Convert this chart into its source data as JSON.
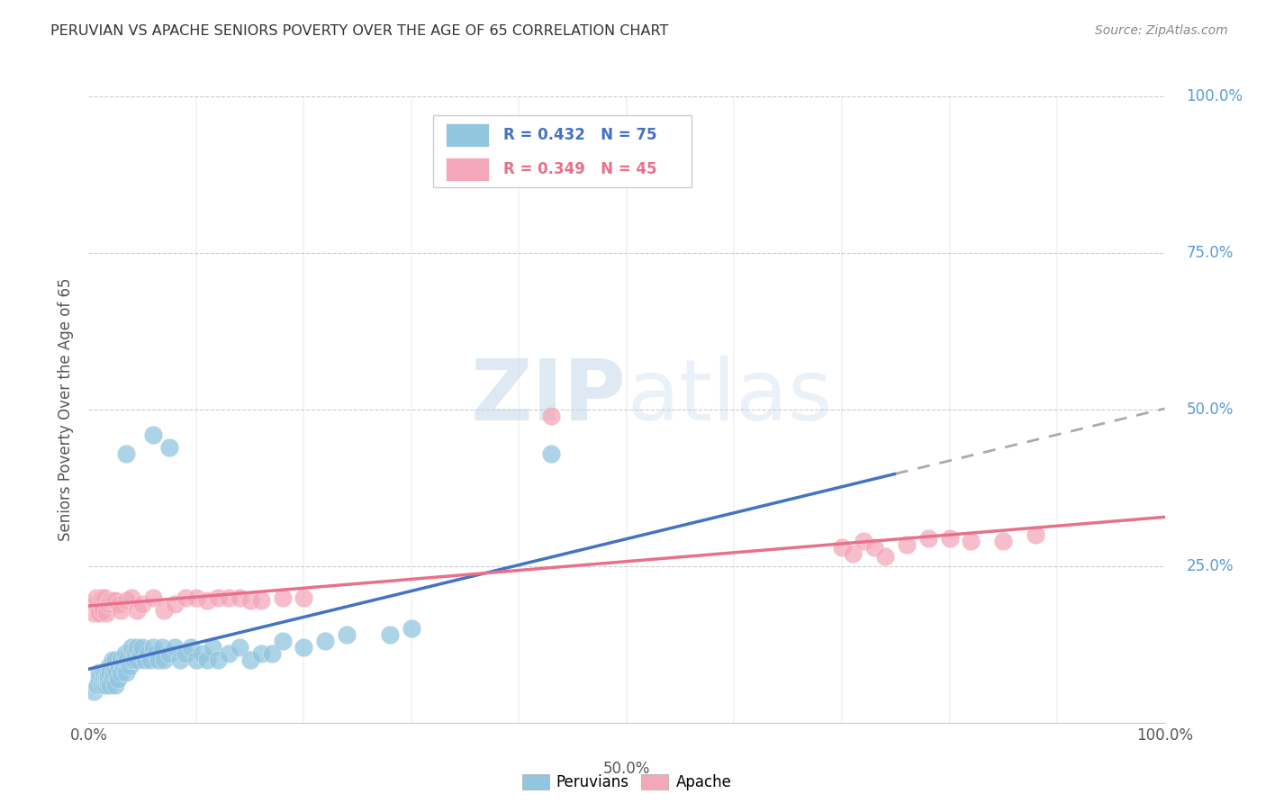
{
  "title": "PERUVIAN VS APACHE SENIORS POVERTY OVER THE AGE OF 65 CORRELATION CHART",
  "source": "Source: ZipAtlas.com",
  "ylabel": "Seniors Poverty Over the Age of 65",
  "xlim": [
    0.0,
    1.0
  ],
  "ylim": [
    0.0,
    1.0
  ],
  "xticks": [
    0.0,
    0.1,
    0.2,
    0.3,
    0.4,
    0.5,
    0.6,
    0.7,
    0.8,
    0.9,
    1.0
  ],
  "xticklabels": [
    "0.0%",
    "",
    "",
    "",
    "",
    "",
    "",
    "",
    "",
    "",
    "100.0%"
  ],
  "ytick_positions": [
    0.25,
    0.5,
    0.75,
    1.0
  ],
  "ytick_labels": [
    "25.0%",
    "50.0%",
    "75.0%",
    "100.0%"
  ],
  "peruvian_color": "#92C5DE",
  "apache_color": "#F4A7B9",
  "peruvian_line_color": "#4472C4",
  "apache_line_color": "#E8708A",
  "dashed_line_color": "#AAAAAA",
  "background_color": "#FFFFFF",
  "grid_color": "#CCCCCC",
  "right_label_color": "#5B9BD5",
  "peruvian_x": [
    0.005,
    0.008,
    0.01,
    0.01,
    0.012,
    0.013,
    0.014,
    0.015,
    0.015,
    0.016,
    0.016,
    0.017,
    0.018,
    0.018,
    0.019,
    0.02,
    0.02,
    0.022,
    0.022,
    0.023,
    0.024,
    0.025,
    0.025,
    0.026,
    0.027,
    0.028,
    0.03,
    0.03,
    0.032,
    0.033,
    0.034,
    0.035,
    0.036,
    0.038,
    0.04,
    0.04,
    0.042,
    0.043,
    0.045,
    0.046,
    0.048,
    0.05,
    0.052,
    0.055,
    0.057,
    0.06,
    0.062,
    0.065,
    0.068,
    0.07,
    0.075,
    0.08,
    0.085,
    0.09,
    0.095,
    0.1,
    0.105,
    0.11,
    0.115,
    0.12,
    0.13,
    0.14,
    0.15,
    0.16,
    0.17,
    0.18,
    0.2,
    0.22,
    0.24,
    0.28,
    0.3,
    0.035,
    0.06,
    0.075,
    0.43
  ],
  "peruvian_y": [
    0.05,
    0.06,
    0.07,
    0.08,
    0.06,
    0.08,
    0.07,
    0.06,
    0.08,
    0.06,
    0.07,
    0.08,
    0.065,
    0.075,
    0.09,
    0.06,
    0.08,
    0.1,
    0.07,
    0.08,
    0.09,
    0.1,
    0.06,
    0.08,
    0.07,
    0.09,
    0.08,
    0.1,
    0.09,
    0.1,
    0.11,
    0.08,
    0.1,
    0.09,
    0.1,
    0.12,
    0.1,
    0.11,
    0.12,
    0.1,
    0.11,
    0.12,
    0.1,
    0.11,
    0.1,
    0.12,
    0.11,
    0.1,
    0.12,
    0.1,
    0.11,
    0.12,
    0.1,
    0.11,
    0.12,
    0.1,
    0.11,
    0.1,
    0.12,
    0.1,
    0.11,
    0.12,
    0.1,
    0.11,
    0.11,
    0.13,
    0.12,
    0.13,
    0.14,
    0.14,
    0.15,
    0.43,
    0.46,
    0.44,
    0.43
  ],
  "apache_x": [
    0.005,
    0.006,
    0.007,
    0.008,
    0.009,
    0.01,
    0.012,
    0.013,
    0.015,
    0.016,
    0.018,
    0.02,
    0.022,
    0.025,
    0.028,
    0.03,
    0.035,
    0.04,
    0.045,
    0.05,
    0.06,
    0.07,
    0.08,
    0.09,
    0.1,
    0.11,
    0.12,
    0.13,
    0.14,
    0.15,
    0.16,
    0.18,
    0.2,
    0.43,
    0.7,
    0.71,
    0.72,
    0.73,
    0.74,
    0.76,
    0.78,
    0.8,
    0.82,
    0.85,
    0.88
  ],
  "apache_y": [
    0.175,
    0.19,
    0.2,
    0.175,
    0.18,
    0.175,
    0.2,
    0.18,
    0.2,
    0.175,
    0.19,
    0.195,
    0.195,
    0.195,
    0.19,
    0.18,
    0.195,
    0.2,
    0.18,
    0.19,
    0.2,
    0.18,
    0.19,
    0.2,
    0.2,
    0.195,
    0.2,
    0.2,
    0.2,
    0.195,
    0.195,
    0.2,
    0.2,
    0.49,
    0.28,
    0.27,
    0.29,
    0.28,
    0.265,
    0.285,
    0.295,
    0.295,
    0.29,
    0.29,
    0.3
  ],
  "peruvian_line_start_x": 0.0,
  "peruvian_line_end_solid_x": 0.75,
  "peruvian_line_end_x": 1.0,
  "apache_line_start_x": 0.0,
  "apache_line_end_x": 1.0
}
